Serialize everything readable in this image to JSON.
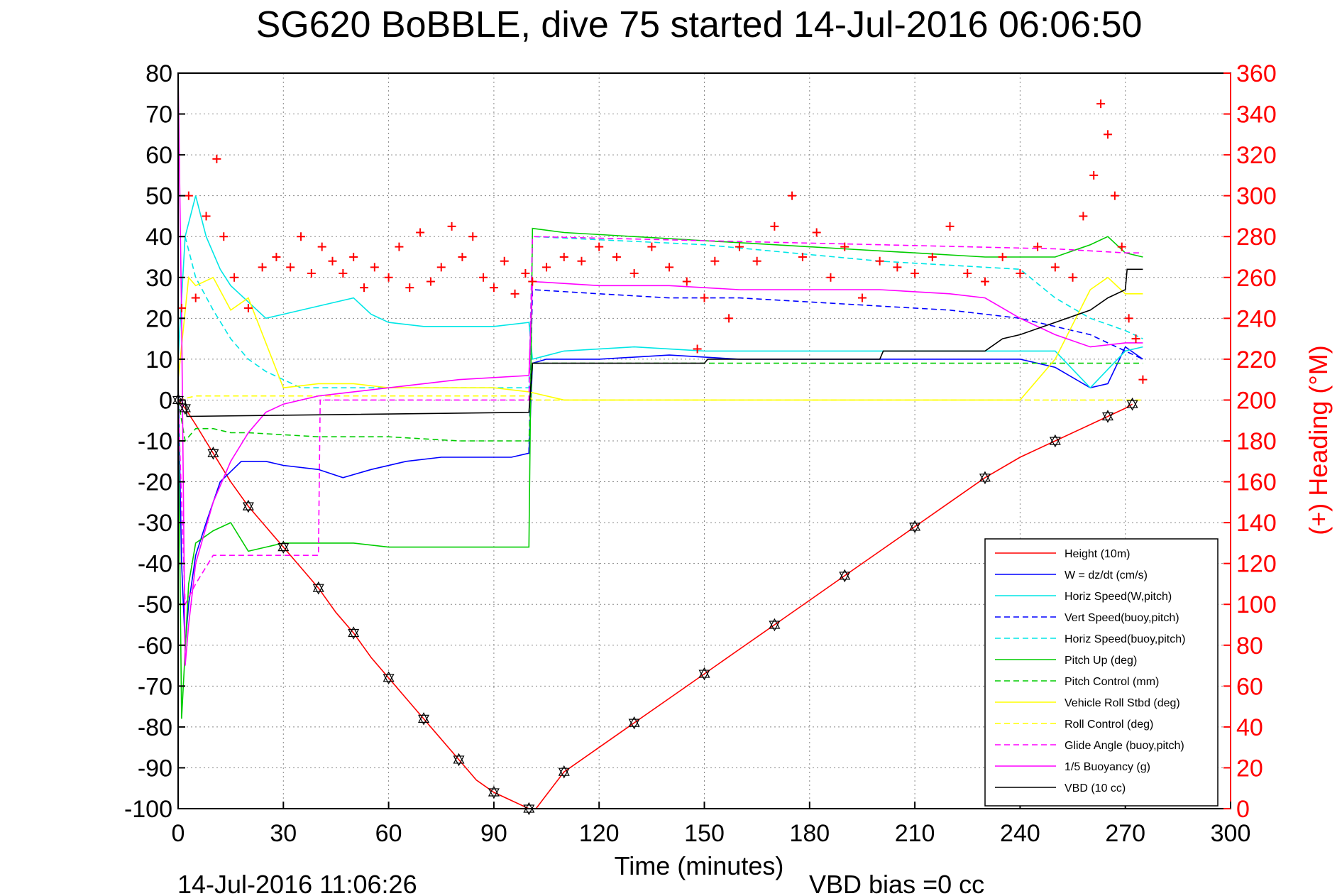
{
  "chart_data": {
    "type": "line",
    "title": "SG620 BoBBLE, dive 75 started 14-Jul-2016 06:06:50",
    "xlabel": "Time (minutes)",
    "ylabel_right": "(+) Heading (°M)",
    "xlim": [
      0,
      300
    ],
    "ylim": [
      -100,
      80
    ],
    "ylim_right": [
      0,
      360
    ],
    "xticks": [
      "0",
      "30",
      "60",
      "90",
      "120",
      "150",
      "180",
      "210",
      "240",
      "270",
      "300"
    ],
    "yticks": [
      "80",
      "70",
      "60",
      "50",
      "40",
      "30",
      "20",
      "10",
      "0",
      "-10",
      "-20",
      "-30",
      "-40",
      "-50",
      "-60",
      "-70",
      "-80",
      "-90",
      "-100"
    ],
    "yticks_right": [
      "360",
      "340",
      "320",
      "300",
      "280",
      "260",
      "240",
      "220",
      "200",
      "180",
      "160",
      "140",
      "120",
      "100",
      "80",
      "60",
      "40",
      "20",
      "0"
    ],
    "grid": true,
    "legend_position": "bottom-right",
    "footer_left": "14-Jul-2016 11:06:26",
    "footer_right": "VBD bias =0 cc",
    "series": [
      {
        "name": "Height (10m)",
        "color": "#ff0000",
        "style": "solid",
        "x": [
          0,
          2,
          5,
          10,
          15,
          20,
          25,
          30,
          35,
          40,
          45,
          50,
          55,
          60,
          65,
          70,
          75,
          80,
          85,
          90,
          95,
          100,
          102,
          110,
          120,
          130,
          140,
          150,
          160,
          170,
          180,
          190,
          200,
          210,
          220,
          230,
          240,
          250,
          260,
          265,
          270,
          272
        ],
        "y": [
          0,
          -2,
          -6,
          -13,
          -20,
          -26,
          -31,
          -36,
          -41,
          -46,
          -52,
          -57,
          -63,
          -68,
          -73,
          -78,
          -83,
          -88,
          -93,
          -96,
          -98,
          -100,
          -100,
          -91,
          -85,
          -79,
          -73,
          -67,
          -61,
          -55,
          -49,
          -43,
          -37,
          -31,
          -25,
          -19,
          -14,
          -10,
          -6,
          -4,
          -2,
          -1
        ]
      },
      {
        "name": "W = dz/dt (cm/s)",
        "color": "#0000ff",
        "style": "solid",
        "x": [
          0,
          1,
          2,
          3,
          5,
          8,
          12,
          18,
          25,
          30,
          40,
          47,
          55,
          65,
          75,
          85,
          95,
          100,
          101,
          105,
          120,
          140,
          160,
          180,
          200,
          220,
          240,
          250,
          260,
          265,
          270,
          275
        ],
        "y": [
          5,
          -40,
          -60,
          -50,
          -38,
          -30,
          -20,
          -15,
          -15,
          -16,
          -17,
          -19,
          -17,
          -15,
          -14,
          -14,
          -14,
          -13,
          9,
          10,
          10,
          11,
          10,
          10,
          10,
          10,
          10,
          8,
          3,
          4,
          13,
          10
        ]
      },
      {
        "name": "Horiz Speed(W,pitch)",
        "color": "#00e6e6",
        "style": "solid",
        "x": [
          0,
          2,
          5,
          8,
          12,
          15,
          20,
          25,
          30,
          40,
          50,
          55,
          60,
          70,
          80,
          90,
          100,
          101,
          110,
          130,
          150,
          170,
          190,
          210,
          230,
          250,
          260,
          270,
          275
        ],
        "y": [
          10,
          40,
          50,
          40,
          32,
          28,
          24,
          20,
          21,
          23,
          25,
          21,
          19,
          18,
          18,
          18,
          19,
          10,
          12,
          13,
          12,
          12,
          12,
          12,
          12,
          12,
          3,
          12,
          13
        ]
      },
      {
        "name": "Vert Speed(buoy,pitch)",
        "color": "#0000ff",
        "style": "dashed",
        "x": [
          100,
          101,
          120,
          140,
          160,
          180,
          200,
          220,
          240,
          260,
          270,
          275
        ],
        "y": [
          -13,
          27,
          26,
          25,
          25,
          24,
          23,
          22,
          20,
          16,
          12,
          10
        ]
      },
      {
        "name": "Horiz Speed(buoy,pitch)",
        "color": "#00e6e6",
        "style": "dashed",
        "x": [
          2,
          5,
          10,
          15,
          20,
          25,
          30,
          35,
          40,
          45,
          50,
          55,
          60,
          100,
          101,
          150,
          200,
          240,
          250,
          260,
          270,
          275
        ],
        "y": [
          40,
          30,
          22,
          15,
          10,
          7,
          5,
          3,
          3,
          3,
          3,
          3,
          3,
          3,
          40,
          38,
          34,
          32,
          25,
          20,
          17,
          15
        ]
      },
      {
        "name": "Pitch Up (deg)",
        "color": "#00cc00",
        "style": "solid",
        "x": [
          0,
          1,
          3,
          5,
          10,
          15,
          20,
          25,
          30,
          40,
          50,
          60,
          70,
          80,
          90,
          100,
          101,
          110,
          130,
          150,
          170,
          190,
          210,
          230,
          250,
          260,
          265,
          270,
          275
        ],
        "y": [
          0,
          -78,
          -45,
          -35,
          -32,
          -30,
          -37,
          -36,
          -35,
          -35,
          -35,
          -36,
          -36,
          -36,
          -36,
          -36,
          42,
          41,
          40,
          39,
          38,
          37,
          36,
          35,
          35,
          38,
          40,
          36,
          35
        ]
      },
      {
        "name": "Pitch Control (mm)",
        "color": "#00cc00",
        "style": "dashed",
        "x": [
          0,
          2,
          5,
          10,
          15,
          20,
          40,
          60,
          80,
          100,
          101,
          120,
          160,
          200,
          240,
          260,
          270,
          275
        ],
        "y": [
          0,
          -10,
          -7,
          -7,
          -8,
          -8,
          -9,
          -9,
          -10,
          -10,
          9,
          9,
          9,
          9,
          9,
          9,
          9,
          9
        ]
      },
      {
        "name": "Vehicle Roll Stbd (deg)",
        "color": "#ffff00",
        "style": "solid",
        "x": [
          0,
          3,
          5,
          10,
          15,
          20,
          30,
          40,
          50,
          60,
          70,
          80,
          90,
          100,
          110,
          120,
          130,
          140,
          150,
          160,
          170,
          180,
          190,
          200,
          210,
          220,
          230,
          240,
          250,
          260,
          265,
          270,
          275
        ],
        "y": [
          5,
          30,
          28,
          30,
          22,
          25,
          3,
          4,
          4,
          3,
          3,
          3,
          3,
          2,
          0,
          0,
          0,
          0,
          0,
          0,
          0,
          0,
          0,
          0,
          0,
          0,
          0,
          0,
          10,
          27,
          30,
          26,
          26
        ]
      },
      {
        "name": "Roll Control (deg)",
        "color": "#ffff00",
        "style": "dashed",
        "x": [
          0,
          5,
          20,
          40,
          60,
          80,
          100,
          101,
          150,
          200,
          240,
          260,
          275
        ],
        "y": [
          0,
          1,
          1,
          1,
          1,
          1,
          1,
          0,
          0,
          0,
          0,
          0,
          0
        ]
      },
      {
        "name": "Glide Angle (buoy,pitch)",
        "color": "#ff00ff",
        "style": "dashed",
        "x": [
          0,
          2,
          5,
          10,
          20,
          30,
          40,
          40.5,
          60,
          100,
          101,
          150,
          200,
          250,
          270,
          275
        ],
        "y": [
          0,
          -50,
          -45,
          -38,
          -38,
          -38,
          -38,
          0,
          0,
          0,
          40,
          39,
          38,
          37,
          36,
          36
        ]
      },
      {
        "name": "1/5 Buoyancy (g)",
        "color": "#ff00ff",
        "style": "solid",
        "x": [
          0,
          1,
          2,
          3,
          5,
          10,
          15,
          20,
          25,
          30,
          40,
          60,
          80,
          100,
          101,
          120,
          140,
          160,
          180,
          200,
          220,
          230,
          240,
          250,
          260,
          270,
          275
        ],
        "y": [
          80,
          20,
          -65,
          -55,
          -40,
          -25,
          -15,
          -8,
          -3,
          -1,
          1,
          3,
          5,
          6,
          29,
          28,
          28,
          27,
          27,
          27,
          26,
          25,
          20,
          16,
          13,
          14,
          14
        ]
      },
      {
        "name": "VBD (10 cc)",
        "color": "#000000",
        "style": "solid",
        "x": [
          0,
          2,
          2.5,
          100,
          101,
          150,
          151,
          200,
          201,
          230,
          235,
          240,
          250,
          260,
          265,
          270,
          270.5,
          275
        ],
        "y": [
          0,
          0,
          -4,
          -3,
          9,
          9,
          10,
          10,
          12,
          12,
          15,
          16,
          19,
          22,
          25,
          27,
          32,
          32
        ]
      }
    ],
    "heading_series": {
      "name": "(+) Heading",
      "color": "#ff0000",
      "marker": "+",
      "x": [
        1,
        3,
        5,
        8,
        11,
        13,
        16,
        20,
        24,
        28,
        32,
        35,
        38,
        41,
        44,
        47,
        50,
        53,
        56,
        60,
        63,
        66,
        69,
        72,
        75,
        78,
        81,
        84,
        87,
        90,
        93,
        96,
        99,
        101,
        105,
        110,
        115,
        120,
        125,
        130,
        135,
        140,
        145,
        148,
        150,
        153,
        157,
        160,
        165,
        170,
        175,
        178,
        182,
        186,
        190,
        195,
        200,
        205,
        210,
        215,
        220,
        225,
        230,
        235,
        240,
        245,
        250,
        255,
        258,
        261,
        263,
        265,
        267,
        269,
        271,
        273,
        275
      ],
      "y": [
        245,
        300,
        250,
        290,
        318,
        280,
        260,
        245,
        265,
        270,
        265,
        280,
        262,
        275,
        268,
        262,
        270,
        255,
        265,
        260,
        275,
        255,
        282,
        258,
        265,
        285,
        270,
        280,
        260,
        255,
        268,
        252,
        262,
        258,
        265,
        270,
        268,
        275,
        270,
        262,
        275,
        265,
        258,
        225,
        250,
        268,
        240,
        275,
        268,
        285,
        300,
        270,
        282,
        260,
        275,
        250,
        268,
        265,
        262,
        270,
        285,
        262,
        258,
        270,
        262,
        275,
        265,
        260,
        290,
        310,
        345,
        330,
        300,
        275,
        240,
        230,
        210
      ]
    }
  },
  "legend": {
    "items": [
      {
        "label": "Height (10m)",
        "color": "#ff0000",
        "dash": false
      },
      {
        "label": "W = dz/dt (cm/s)",
        "color": "#0000ff",
        "dash": false
      },
      {
        "label": "Horiz Speed(W,pitch)",
        "color": "#00e6e6",
        "dash": false
      },
      {
        "label": "Vert Speed(buoy,pitch)",
        "color": "#0000ff",
        "dash": true
      },
      {
        "label": "Horiz Speed(buoy,pitch)",
        "color": "#00e6e6",
        "dash": true
      },
      {
        "label": "Pitch Up (deg)",
        "color": "#00cc00",
        "dash": false
      },
      {
        "label": "Pitch Control (mm)",
        "color": "#00cc00",
        "dash": true
      },
      {
        "label": "Vehicle Roll Stbd (deg)",
        "color": "#ffff00",
        "dash": false
      },
      {
        "label": "Roll Control (deg)",
        "color": "#ffff00",
        "dash": true
      },
      {
        "label": "Glide Angle (buoy,pitch)",
        "color": "#ff00ff",
        "dash": true
      },
      {
        "label": "1/5 Buoyancy (g)",
        "color": "#ff00ff",
        "dash": false
      },
      {
        "label": "VBD (10 cc)",
        "color": "#000000",
        "dash": false
      }
    ]
  }
}
